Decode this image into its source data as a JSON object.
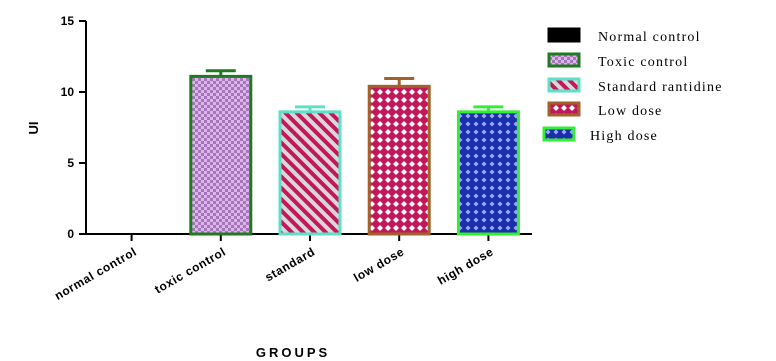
{
  "chart_data": {
    "type": "bar",
    "categories": [
      "normal control",
      "toxic control",
      "standard",
      "low dose",
      "high dose"
    ],
    "values": [
      0,
      11.1,
      8.6,
      10.4,
      8.6
    ],
    "errors": [
      0,
      0.4,
      0.35,
      0.55,
      0.35
    ],
    "xlabel": "GROUPS",
    "ylabel": "UI",
    "ylim": [
      0,
      15
    ],
    "yticks": [
      0,
      5,
      10,
      15
    ],
    "grid": false,
    "legend_position": "right",
    "series": [
      {
        "name": "Normal control",
        "pattern": "solid",
        "fill": "#000000",
        "edge": "#000000"
      },
      {
        "name": "Toxic control",
        "pattern": "checker",
        "fill": "#c79bd4",
        "edge": "#1f7a1f"
      },
      {
        "name": "Standard rantidine",
        "pattern": "diagonal",
        "fill": "#c2185b",
        "edge": "#5ee0c8"
      },
      {
        "name": "Low dose",
        "pattern": "diamond",
        "fill": "#c2185b",
        "edge": "#a0612a"
      },
      {
        "name": "High dose",
        "pattern": "diamond",
        "fill": "#1a2fa8",
        "edge": "#33ee33"
      }
    ]
  }
}
